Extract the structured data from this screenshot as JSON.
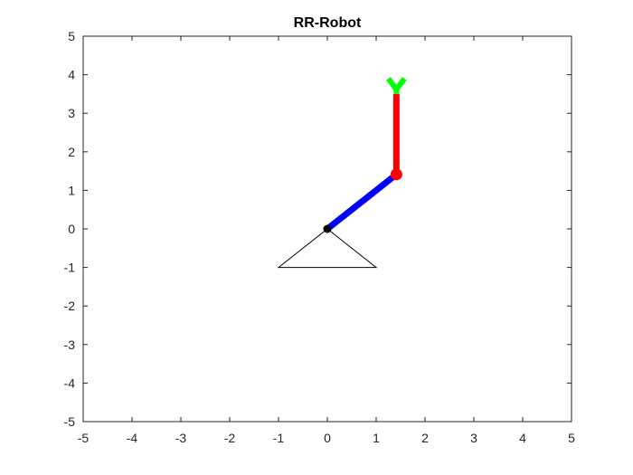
{
  "chart_data": {
    "type": "scatter",
    "title": "RR-Robot",
    "xlabel": "",
    "ylabel": "",
    "xlim": [
      -5,
      5
    ],
    "ylim": [
      -5,
      5
    ],
    "xticks": [
      -5,
      -4,
      -3,
      -2,
      -1,
      0,
      1,
      2,
      3,
      4,
      5
    ],
    "yticks": [
      -5,
      -4,
      -3,
      -2,
      -1,
      0,
      1,
      2,
      3,
      4,
      5
    ],
    "xtick_labels": [
      "-5",
      "-4",
      "-3",
      "-2",
      "-1",
      "0",
      "1",
      "2",
      "3",
      "4",
      "5"
    ],
    "ytick_labels": [
      "-5",
      "-4",
      "-3",
      "-2",
      "-1",
      "0",
      "1",
      "2",
      "3",
      "4",
      "5"
    ],
    "grid": false,
    "box": true,
    "base": {
      "color": "#000000",
      "points": [
        [
          0,
          0
        ],
        [
          -1,
          -1
        ],
        [
          1,
          -1
        ],
        [
          0,
          0
        ]
      ]
    },
    "base_joint": {
      "x": 0,
      "y": 0,
      "color": "#000000"
    },
    "link1": {
      "from": [
        0,
        0
      ],
      "to": [
        1.414,
        1.414
      ],
      "color": "#0000ff"
    },
    "elbow_joint": {
      "x": 1.414,
      "y": 1.414,
      "color": "#ff0000"
    },
    "link2": {
      "from": [
        1.414,
        1.414
      ],
      "to": [
        1.414,
        3.5
      ],
      "color": "#ff0000"
    },
    "gripper": {
      "color": "#00ff00",
      "stem": [
        [
          1.414,
          3.5
        ],
        [
          1.414,
          3.62
        ]
      ],
      "left_finger": [
        [
          1.414,
          3.62
        ],
        [
          1.25,
          3.9
        ]
      ],
      "right_finger": [
        [
          1.414,
          3.62
        ],
        [
          1.58,
          3.9
        ]
      ]
    }
  }
}
